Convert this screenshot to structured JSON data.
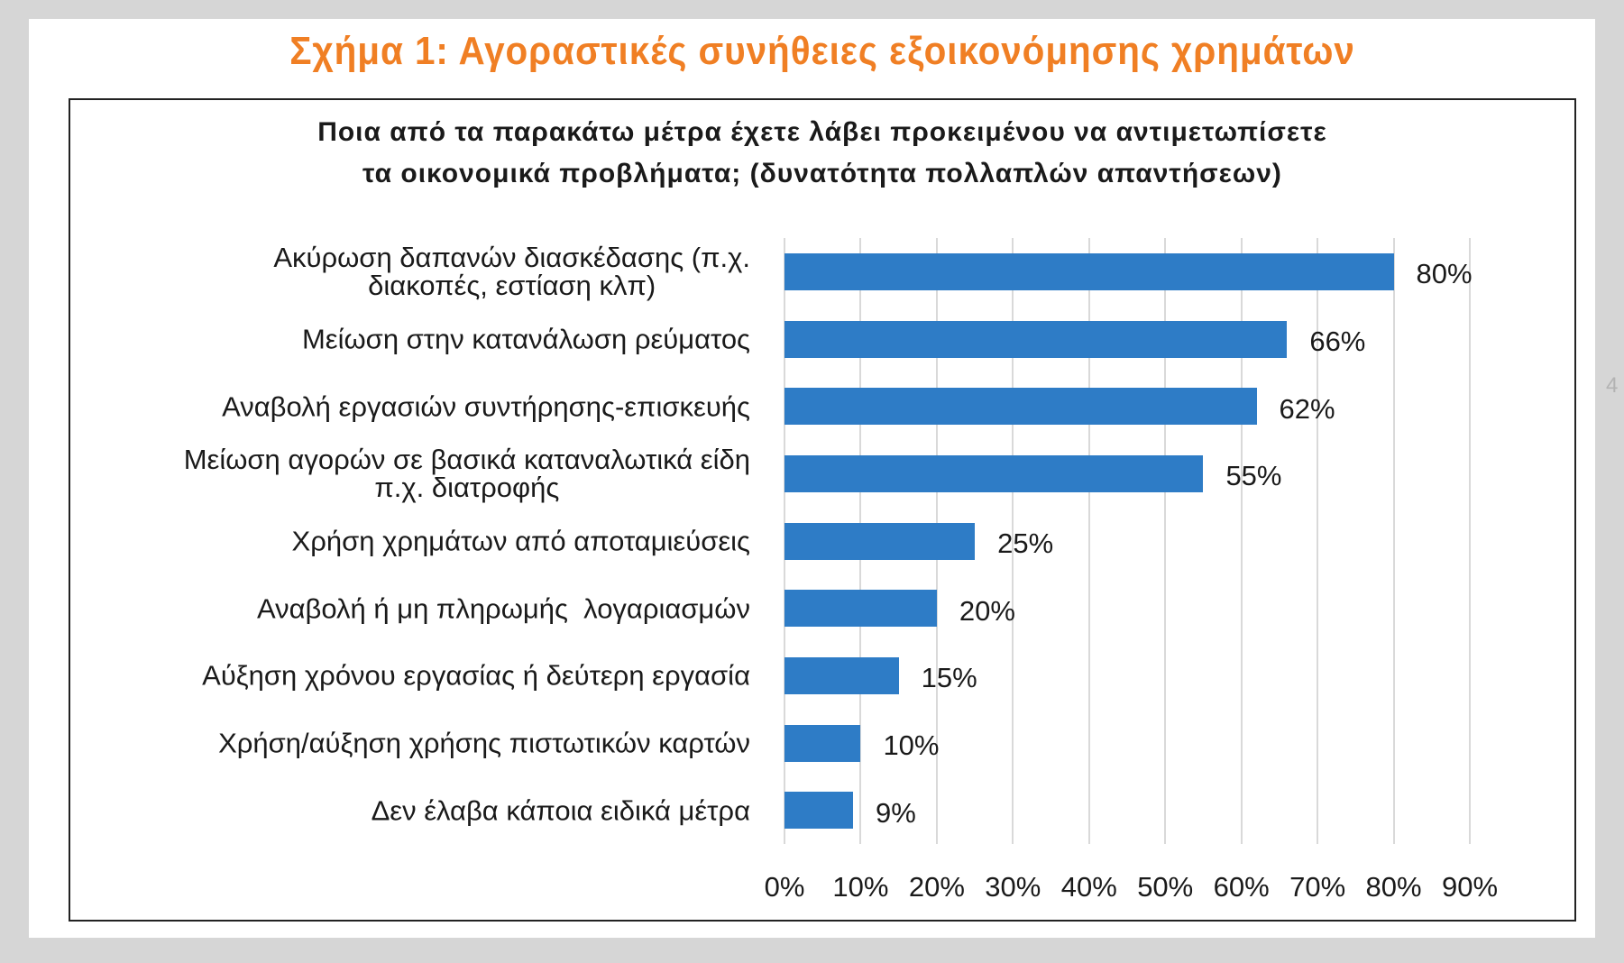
{
  "figure": {
    "caption": "Σχήμα 1: Αγοραστικές συνήθειες εξοικονόμησης χρημάτων",
    "edge_fragment": "4"
  },
  "colors": {
    "caption": "#f07f24",
    "bar": "#2e7cc6",
    "grid": "#d9d9d9",
    "text": "#1a1a1a",
    "frame_background": "#d6d6d6"
  },
  "chart_data": {
    "type": "bar",
    "orientation": "horizontal",
    "title": "Ποια από τα παρακάτω μέτρα έχετε λάβει προκειμένου να αντιμετωπίσετε\nτα οικονομικά προβλήματα; (δυνατότητα πολλαπλών απαντήσεων)",
    "categories": [
      "Ακύρωση δαπανών διασκέδασης (π.χ.\nδιακοπές, εστίαση κλπ)",
      "Μείωση στην κατανάλωση ρεύματος",
      "Αναβολή εργασιών συντήρησης-επισκευής",
      "Μείωση αγορών σε βασικά καταναλωτικά είδη\nπ.χ. διατροφής",
      "Χρήση χρημάτων από αποταμιεύσεις",
      "Αναβολή ή μη πληρωμής  λογαριασμών",
      "Αύξηση χρόνου εργασίας ή δεύτερη εργασία",
      "Χρήση/αύξηση χρήσης πιστωτικών καρτών",
      "Δεν έλαβα κάποια ειδικά μέτρα"
    ],
    "values": [
      80,
      66,
      62,
      55,
      25,
      20,
      15,
      10,
      9
    ],
    "data_labels": [
      "80%",
      "66%",
      "62%",
      "55%",
      "25%",
      "20%",
      "15%",
      "10%",
      "9%"
    ],
    "xticks": [
      "0%",
      "10%",
      "20%",
      "30%",
      "40%",
      "50%",
      "60%",
      "70%",
      "80%",
      "90%"
    ],
    "xlim": [
      0,
      90
    ],
    "grid": true,
    "legend": false
  }
}
